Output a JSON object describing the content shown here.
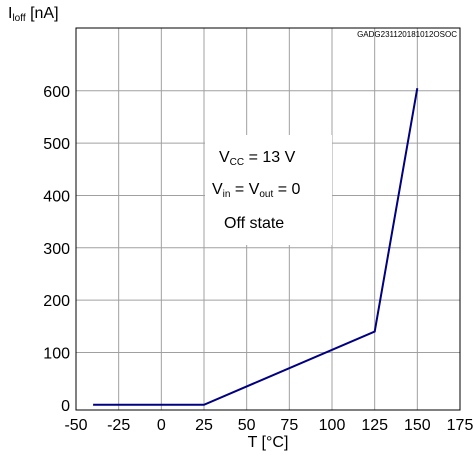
{
  "chart_data": {
    "type": "line",
    "title": "",
    "xlabel": "T [°C]",
    "ylabel": {
      "main": "I",
      "sub": "loff",
      "rest": " [nA]"
    },
    "doc_id": "GADG231120181012OSOC",
    "xlim": [
      -50,
      175
    ],
    "ylim": [
      -10,
      720
    ],
    "xticks": [
      -50,
      -25,
      0,
      25,
      50,
      75,
      100,
      125,
      150,
      175
    ],
    "yticks": [
      0,
      100,
      200,
      300,
      400,
      500,
      600
    ],
    "grid": true,
    "series": [
      {
        "color": "#000080",
        "x": [
          -40,
          25,
          125,
          150
        ],
        "y": [
          0,
          0,
          140,
          605
        ]
      }
    ],
    "annotations": [
      {
        "main": "V",
        "sub": "CC",
        "rest": " = 13 V"
      },
      {
        "main": "V",
        "sub": "in",
        "mid": " = V",
        "sub2": "out",
        "rest": " = 0"
      },
      {
        "main": "Off state"
      }
    ]
  }
}
